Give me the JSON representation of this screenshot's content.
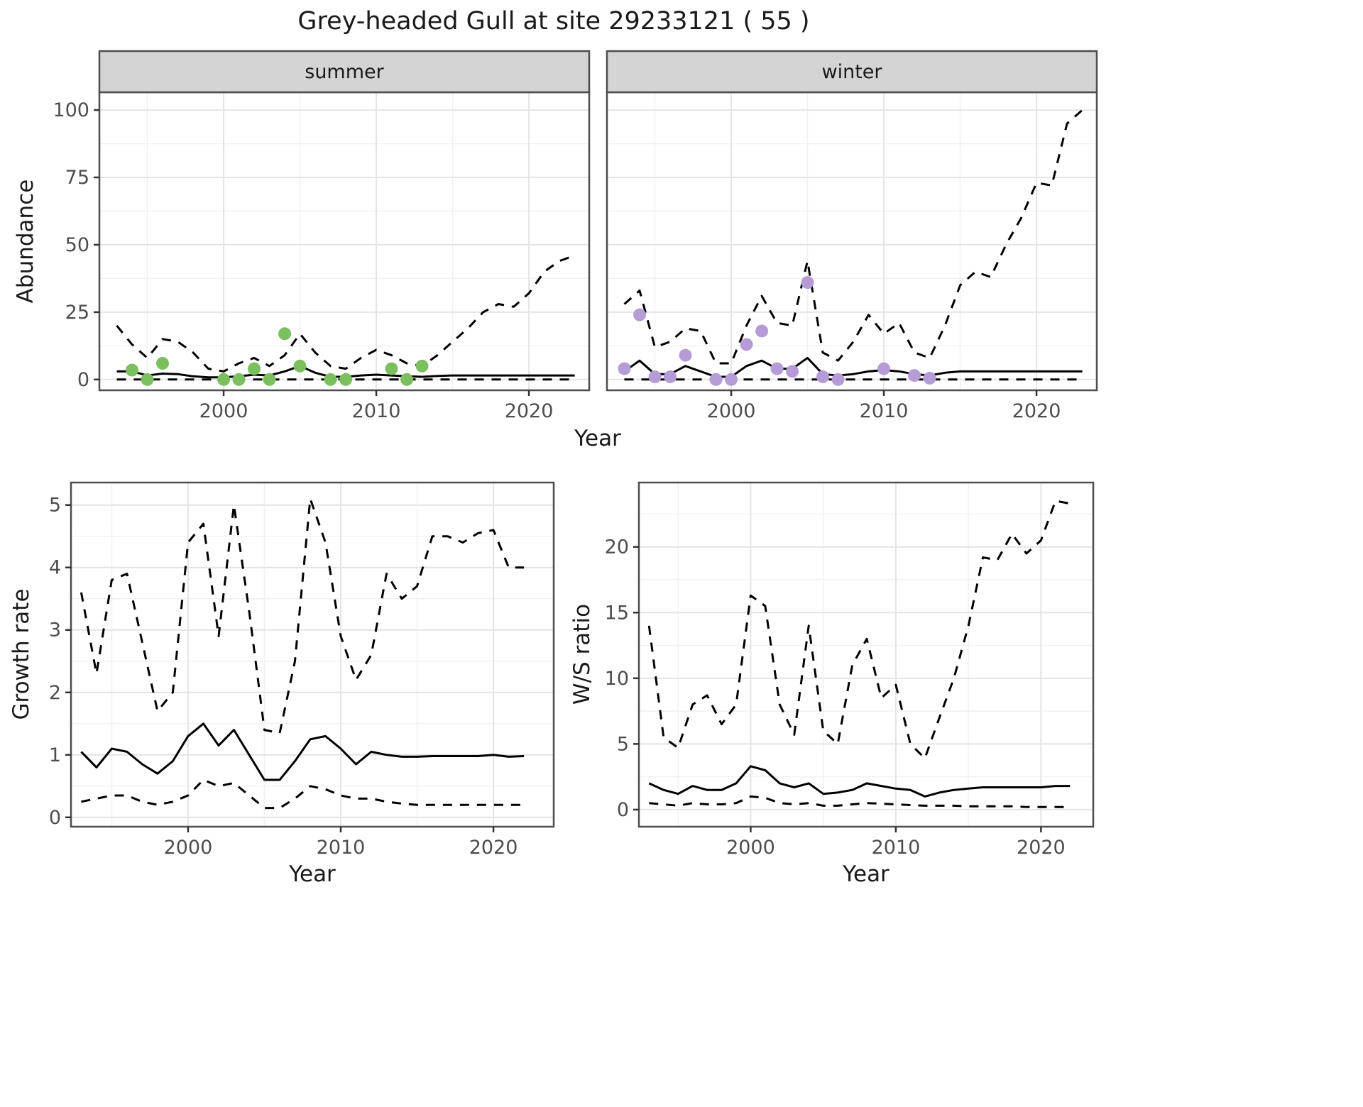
{
  "title": "Grey-headed Gull at site 29233121 ( 55 )",
  "facets": {
    "summer": "summer",
    "winter": "winter"
  },
  "axis_labels": {
    "abundance": "Abundance",
    "year": "Year",
    "growth_rate": "Growth rate",
    "ws_ratio": "W/S ratio"
  },
  "style": {
    "point_color_summer": "#7cbf5f",
    "point_color_winter": "#b69cd6",
    "line_color": "#000000",
    "grid_major": "#e4e4e4",
    "grid_minor": "#f1f1f1",
    "panel_border": "#4d4d4d",
    "strip_fill": "#d4d4d4",
    "tick_color": "#333333",
    "tick_label_color": "#4d4d4d",
    "text_color": "#1a1a1a"
  },
  "chart_data": [
    {
      "id": "abundance-summer",
      "type": "line+scatter",
      "facet": "summer",
      "xlabel": "Year",
      "ylabel": "Abundance",
      "xlim": [
        1991.86,
        2023.95
      ],
      "ylim": [
        -4,
        106.6
      ],
      "xticks": [
        2000,
        2010,
        2020
      ],
      "yticks": [
        0,
        25,
        50,
        75,
        100
      ],
      "x": [
        1993,
        1994,
        1995,
        1996,
        1997,
        1998,
        1999,
        2000,
        2001,
        2002,
        2003,
        2004,
        2005,
        2006,
        2007,
        2008,
        2009,
        2010,
        2011,
        2012,
        2013,
        2014,
        2015,
        2016,
        2017,
        2018,
        2019,
        2020,
        2021,
        2022,
        2023
      ],
      "series": [
        {
          "name": "lower",
          "style": "dashed",
          "values": [
            0,
            0,
            0,
            0,
            0,
            0,
            0,
            0,
            0,
            0,
            0,
            0,
            0,
            0,
            0,
            0,
            0,
            0,
            0,
            0,
            0,
            0,
            0,
            0,
            0,
            0,
            0,
            0,
            0,
            0,
            0
          ]
        },
        {
          "name": "upper",
          "style": "dashed",
          "values": [
            20,
            13,
            8,
            15,
            14,
            10,
            4,
            3,
            6,
            8,
            5,
            9,
            17,
            10,
            5,
            4,
            8,
            11,
            9,
            6,
            5,
            9,
            14,
            19,
            25,
            28,
            27,
            32,
            40,
            44,
            46
          ]
        },
        {
          "name": "median",
          "style": "solid",
          "values": [
            3,
            3,
            1.5,
            2.2,
            2,
            1.2,
            0.8,
            0.8,
            1.2,
            1.8,
            1.5,
            3,
            5,
            2.5,
            1,
            1,
            1.5,
            1.8,
            1.5,
            1.2,
            1,
            1.3,
            1.5,
            1.5,
            1.5,
            1.5,
            1.5,
            1.5,
            1.5,
            1.5,
            1.5
          ]
        }
      ],
      "points": {
        "color": "#7cbf5f",
        "x": [
          1994,
          1995,
          1996,
          2000,
          2001,
          2002,
          2003,
          2004,
          2005,
          2007,
          2008,
          2011,
          2012,
          2013
        ],
        "y": [
          3.5,
          0,
          6,
          0,
          0,
          4,
          0,
          17,
          5,
          0,
          0,
          4,
          0,
          5
        ]
      }
    },
    {
      "id": "abundance-winter",
      "type": "line+scatter",
      "facet": "winter",
      "xlabel": "Year",
      "ylabel": "Abundance",
      "xlim": [
        1991.86,
        2023.95
      ],
      "ylim": [
        -4,
        106.6
      ],
      "xticks": [
        2000,
        2010,
        2020
      ],
      "yticks": [
        0,
        25,
        50,
        75,
        100
      ],
      "x": [
        1993,
        1994,
        1995,
        1996,
        1997,
        1998,
        1999,
        2000,
        2001,
        2002,
        2003,
        2004,
        2005,
        2006,
        2007,
        2008,
        2009,
        2010,
        2011,
        2012,
        2013,
        2014,
        2015,
        2016,
        2017,
        2018,
        2019,
        2020,
        2021,
        2022,
        2023
      ],
      "series": [
        {
          "name": "lower",
          "style": "dashed",
          "values": [
            0,
            0,
            0,
            0,
            0,
            0,
            0,
            0,
            0,
            0,
            0,
            0,
            0,
            0,
            0,
            0,
            0,
            0,
            0,
            0,
            0,
            0,
            0,
            0,
            0,
            0,
            0,
            0,
            0,
            0,
            0
          ]
        },
        {
          "name": "upper",
          "style": "dashed",
          "values": [
            28,
            33,
            12,
            14,
            19,
            18,
            6,
            6,
            20,
            31,
            21,
            20,
            44,
            10,
            7,
            14,
            24,
            17,
            21,
            10,
            8,
            20,
            35,
            40,
            38,
            50,
            60,
            73,
            72,
            95,
            100
          ]
        },
        {
          "name": "median",
          "style": "solid",
          "values": [
            3,
            7,
            2,
            2,
            5,
            3,
            1,
            1,
            5,
            7,
            4,
            4,
            8,
            2,
            1.5,
            2,
            3,
            3.5,
            3,
            2,
            1.5,
            2.5,
            3,
            3,
            3,
            3,
            3,
            3,
            3,
            3,
            3
          ]
        }
      ],
      "points": {
        "color": "#b69cd6",
        "x": [
          1993,
          1994,
          1995,
          1996,
          1997,
          1999,
          2000,
          2001,
          2002,
          2003,
          2004,
          2005,
          2006,
          2007,
          2010,
          2012,
          2013
        ],
        "y": [
          4,
          24,
          1,
          1,
          9,
          0,
          0,
          13,
          18,
          4,
          3,
          36,
          1,
          0,
          4,
          1.5,
          0.5
        ]
      }
    },
    {
      "id": "growth-rate",
      "type": "line",
      "xlabel": "Year",
      "ylabel": "Growth rate",
      "xlim": [
        1992.33,
        2023.95
      ],
      "ylim": [
        -0.15,
        5.36
      ],
      "xticks": [
        2000,
        2010,
        2020
      ],
      "yticks": [
        0,
        1,
        2,
        3,
        4,
        5
      ],
      "x": [
        1993,
        1994,
        1995,
        1996,
        1997,
        1998,
        1999,
        2000,
        2001,
        2002,
        2003,
        2004,
        2005,
        2006,
        2007,
        2008,
        2009,
        2010,
        2011,
        2012,
        2013,
        2014,
        2015,
        2016,
        2017,
        2018,
        2019,
        2020,
        2021,
        2022
      ],
      "series": [
        {
          "name": "lower",
          "style": "dashed",
          "values": [
            0.25,
            0.3,
            0.35,
            0.35,
            0.25,
            0.2,
            0.25,
            0.35,
            0.6,
            0.5,
            0.55,
            0.35,
            0.15,
            0.15,
            0.3,
            0.5,
            0.45,
            0.35,
            0.3,
            0.3,
            0.25,
            0.22,
            0.2,
            0.2,
            0.2,
            0.2,
            0.2,
            0.2,
            0.2,
            0.2
          ]
        },
        {
          "name": "upper",
          "style": "dashed",
          "values": [
            3.6,
            2.3,
            3.8,
            3.9,
            2.8,
            1.7,
            2.0,
            4.4,
            4.7,
            2.9,
            5.0,
            3.3,
            1.4,
            1.35,
            2.5,
            5.1,
            4.4,
            2.9,
            2.2,
            2.6,
            3.9,
            3.5,
            3.7,
            4.5,
            4.5,
            4.4,
            4.55,
            4.6,
            4.0,
            4.0
          ]
        },
        {
          "name": "median",
          "style": "solid",
          "values": [
            1.05,
            0.8,
            1.1,
            1.05,
            0.85,
            0.7,
            0.9,
            1.3,
            1.5,
            1.15,
            1.4,
            1.0,
            0.6,
            0.6,
            0.9,
            1.25,
            1.3,
            1.1,
            0.85,
            1.05,
            1.0,
            0.97,
            0.97,
            0.98,
            0.98,
            0.98,
            0.98,
            1.0,
            0.97,
            0.98
          ]
        }
      ]
    },
    {
      "id": "ws-ratio",
      "type": "line",
      "xlabel": "Year",
      "ylabel": "W/S ratio",
      "xlim": [
        1992.3,
        2023.6
      ],
      "ylim": [
        -1.3,
        24.9
      ],
      "xticks": [
        2000,
        2010,
        2020
      ],
      "yticks": [
        0,
        5,
        10,
        15,
        20
      ],
      "x": [
        1993,
        1994,
        1995,
        1996,
        1997,
        1998,
        1999,
        2000,
        2001,
        2002,
        2003,
        2004,
        2005,
        2006,
        2007,
        2008,
        2009,
        2010,
        2011,
        2012,
        2013,
        2014,
        2015,
        2016,
        2017,
        2018,
        2019,
        2020,
        2021,
        2022
      ],
      "series": [
        {
          "name": "lower",
          "style": "dashed",
          "values": [
            0.5,
            0.4,
            0.3,
            0.5,
            0.4,
            0.4,
            0.5,
            1.0,
            0.9,
            0.5,
            0.4,
            0.5,
            0.3,
            0.3,
            0.4,
            0.5,
            0.45,
            0.4,
            0.35,
            0.3,
            0.3,
            0.3,
            0.25,
            0.25,
            0.25,
            0.25,
            0.2,
            0.2,
            0.2,
            0.2
          ]
        },
        {
          "name": "upper",
          "style": "dashed",
          "values": [
            14,
            5.5,
            4.7,
            8,
            8.7,
            6.5,
            8,
            16.3,
            15.5,
            8,
            5.7,
            14,
            6,
            5,
            11,
            13,
            8.5,
            9.5,
            5,
            3.9,
            7,
            10,
            14,
            19.2,
            19,
            21,
            19.5,
            20.5,
            23.5,
            23.3
          ]
        },
        {
          "name": "median",
          "style": "solid",
          "values": [
            2.0,
            1.5,
            1.2,
            1.8,
            1.5,
            1.5,
            2.0,
            3.3,
            3.0,
            2.0,
            1.7,
            2.0,
            1.2,
            1.3,
            1.5,
            2.0,
            1.8,
            1.6,
            1.5,
            1.0,
            1.3,
            1.5,
            1.6,
            1.7,
            1.7,
            1.7,
            1.7,
            1.7,
            1.8,
            1.8
          ]
        }
      ]
    }
  ]
}
